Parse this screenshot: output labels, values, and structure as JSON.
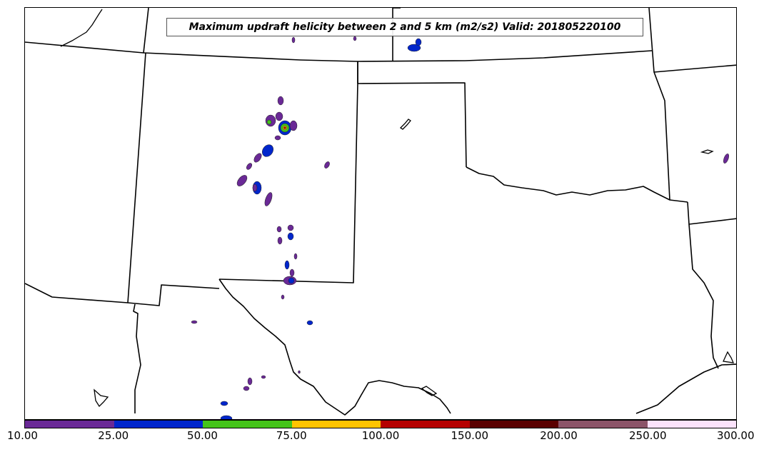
{
  "title": "Maximum updraft helicity between 2 and 5 km (m2/s2) Valid: 201805220100",
  "colorbar": {
    "ticks": [
      "10.00",
      "25.00",
      "50.00",
      "75.00",
      "100.00",
      "150.00",
      "200.00",
      "250.00",
      "300.00"
    ],
    "colors": [
      "#6a2996",
      "#0026cc",
      "#44c41a",
      "#ffc400",
      "#b50000",
      "#5a0000",
      "#8b5468",
      "#fbe2fb"
    ]
  }
}
